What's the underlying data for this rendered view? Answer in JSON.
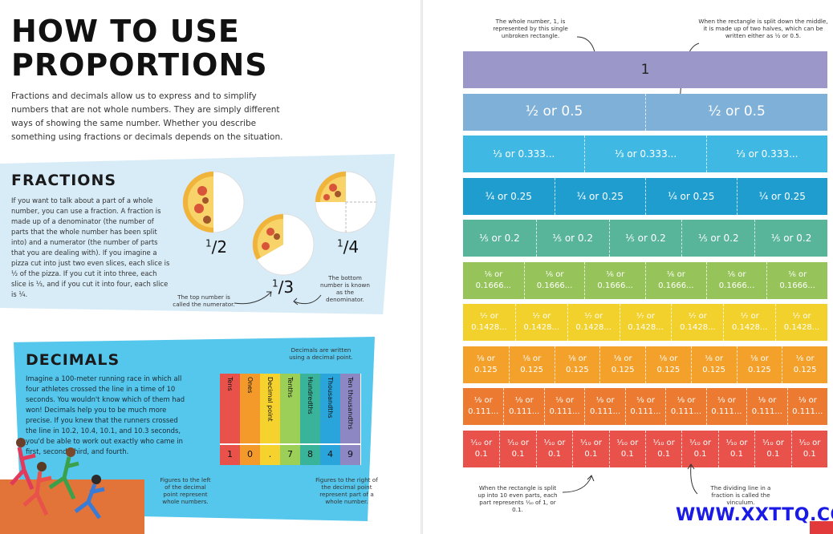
{
  "left_page": {
    "title_line1": "HOW TO USE",
    "title_line2": "PROPORTIONS",
    "intro": "Fractions and decimals allow us to express and to simplify numbers that are not whole numbers. They are simply different ways of showing the same number. Whether you describe something using fractions or decimals depends on the situation.",
    "fractions": {
      "heading": "FRACTIONS",
      "body": "If you want to talk about a part of a whole number, you can use a fraction. A fraction is made up of a denominator (the number of parts that the whole number has been split into) and a numerator (the number of parts that you are dealing with). If you imagine a pizza cut into just two even slices, each slice is ½ of the pizza. If you cut it into three, each slice is ⅓, and if you cut it into four, each slice is ¼.",
      "labels": [
        {
          "num": "1",
          "den": "2"
        },
        {
          "num": "1",
          "den": "3"
        },
        {
          "num": "1",
          "den": "4"
        }
      ],
      "note_top": "The top number is called the numerator.",
      "note_bottom": "The bottom number is known as the denominator."
    },
    "decimals": {
      "heading": "DECIMALS",
      "body": "Imagine a 100-meter running race in which all four athletes crossed the line in a time of 10 seconds. You wouldn't know which of them had won! Decimals help you to be much more precise. If you knew that the runners crossed the line in 10.2, 10.4, 10.1, and 10.3 seconds, you'd be able to work out exactly who came in first, second, third, and fourth.",
      "note_written": "Decimals are written using a decimal point.",
      "note_left": "Figures to the left of the decimal point represent whole numbers.",
      "note_right": "Figures to the right of the decimal point represent part of a whole number.",
      "columns": [
        {
          "label": "Tens",
          "digit": "1",
          "color": "#e8524a"
        },
        {
          "label": "Ones",
          "digit": "0",
          "color": "#f39a2b"
        },
        {
          "label": "Decimal point",
          "digit": ".",
          "color": "#f6d22f"
        },
        {
          "label": "Tenths",
          "digit": "7",
          "color": "#9ccf57"
        },
        {
          "label": "Hundredths",
          "digit": "8",
          "color": "#39b49a"
        },
        {
          "label": "Thousandths",
          "digit": "4",
          "color": "#2aa5dc"
        },
        {
          "label": "Ten thousandths",
          "digit": "9",
          "color": "#8d88c4"
        }
      ]
    }
  },
  "right_page": {
    "note_whole": "The whole number, 1, is represented by this single unbroken rectangle.",
    "note_half": "When the rectangle is split down the middle, it is made up of two halves, which can be written either as ½ or 0.5.",
    "note_tenths": "When the rectangle is split up into 10 even parts, each part represents ⅒ of 1, or 0.1.",
    "note_vinculum": "The dividing line in a fraction is called the vinculum.",
    "watermark": "WWW.XXTTQ.COM",
    "bars": [
      {
        "parts": 1,
        "color": "#9b97c8",
        "label": "1"
      },
      {
        "parts": 2,
        "color": "#7fb0d8",
        "label": "½ or 0.5"
      },
      {
        "parts": 3,
        "color": "#3fb9e4",
        "label": "⅓ or 0.333..."
      },
      {
        "parts": 4,
        "color": "#1f9dcf",
        "label": "¼ or 0.25"
      },
      {
        "parts": 5,
        "color": "#58b59a",
        "label": "⅕ or 0.2"
      },
      {
        "parts": 6,
        "color": "#97c45a",
        "label": "⅙ or\n0.1666..."
      },
      {
        "parts": 7,
        "color": "#f3d12c",
        "label": "⅐ or\n0.1428..."
      },
      {
        "parts": 8,
        "color": "#f3a12b",
        "label": "⅛ or\n0.125"
      },
      {
        "parts": 9,
        "color": "#ec7a30",
        "label": "⅑ or\n0.111..."
      },
      {
        "parts": 10,
        "color": "#e8524a",
        "label": "⅒ or\n0.1"
      }
    ]
  }
}
